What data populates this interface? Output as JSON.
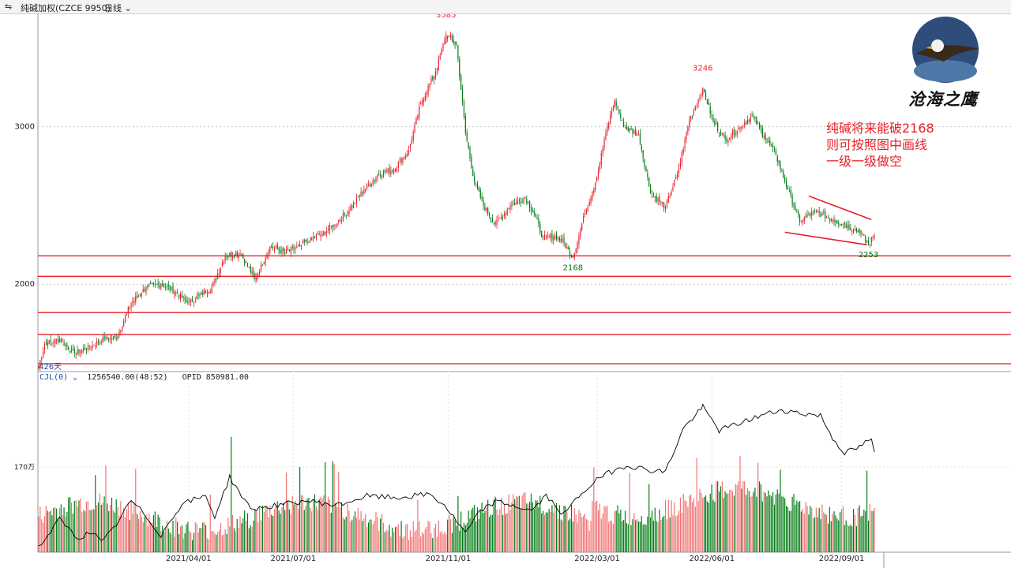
{
  "toolbar": {
    "icon": "chart-link-icon",
    "symbol": "纯碱加权(CZCE 9950)",
    "period": "日线"
  },
  "indicator": {
    "name": "CJL(0)",
    "volume_value": "1256540.00(48:52)",
    "oi_value": "OPID 850981.00"
  },
  "annotation": {
    "lines": [
      "纯碱将来能破2168",
      "则可按照图中画线",
      "一级一级做空"
    ]
  },
  "logo": {
    "text": "沧海之鹰",
    "icon": "eagle-logo-icon"
  },
  "chart_data": {
    "type": "candlestick",
    "price_axis": {
      "ticks": [
        3000,
        2000
      ],
      "ylim": [
        1450,
        3720
      ]
    },
    "volume_axis": {
      "ticks": [
        "170万"
      ]
    },
    "date_ticks": [
      "2021/04/01",
      "2021/07/01",
      "2021/11/01",
      "2022/03/01",
      "2022/06/01",
      "2022/09/01"
    ],
    "bar_count_label": "426天",
    "peak_labels": [
      {
        "label": "3585",
        "type": "high"
      },
      {
        "label": "3246",
        "type": "high"
      },
      {
        "label": "2168",
        "type": "low"
      },
      {
        "label": "2253",
        "type": "low"
      }
    ],
    "support_lines": [
      2180,
      2050,
      1820,
      1680,
      1495
    ],
    "colors": {
      "up": "#e8202a",
      "down": "#007a12",
      "line": "#e8202a",
      "oi": "#000000"
    },
    "anchors": [
      [
        0,
        1480
      ],
      [
        4,
        1620
      ],
      [
        14,
        1650
      ],
      [
        24,
        1560
      ],
      [
        33,
        1600
      ],
      [
        44,
        1650
      ],
      [
        52,
        1660
      ],
      [
        62,
        1880
      ],
      [
        72,
        1980
      ],
      [
        82,
        2000
      ],
      [
        92,
        1950
      ],
      [
        100,
        1880
      ],
      [
        108,
        1930
      ],
      [
        116,
        1980
      ],
      [
        125,
        2180
      ],
      [
        135,
        2200
      ],
      [
        145,
        2030
      ],
      [
        155,
        2240
      ],
      [
        165,
        2200
      ],
      [
        175,
        2240
      ],
      [
        182,
        2290
      ],
      [
        190,
        2320
      ],
      [
        198,
        2380
      ],
      [
        208,
        2470
      ],
      [
        218,
        2600
      ],
      [
        228,
        2700
      ],
      [
        238,
        2730
      ],
      [
        248,
        2850
      ],
      [
        256,
        3150
      ],
      [
        266,
        3350
      ],
      [
        273,
        3585
      ],
      [
        280,
        3520
      ],
      [
        286,
        2960
      ],
      [
        292,
        2650
      ],
      [
        298,
        2500
      ],
      [
        306,
        2380
      ],
      [
        316,
        2500
      ],
      [
        326,
        2550
      ],
      [
        332,
        2450
      ],
      [
        338,
        2290
      ],
      [
        346,
        2310
      ],
      [
        352,
        2260
      ],
      [
        358,
        2168
      ],
      [
        366,
        2450
      ],
      [
        374,
        2680
      ],
      [
        380,
        2960
      ],
      [
        386,
        3170
      ],
      [
        392,
        3000
      ],
      [
        402,
        2950
      ],
      [
        410,
        2580
      ],
      [
        420,
        2490
      ],
      [
        428,
        2700
      ],
      [
        436,
        3040
      ],
      [
        445,
        3246
      ],
      [
        452,
        3030
      ],
      [
        460,
        2920
      ],
      [
        470,
        3000
      ],
      [
        478,
        3070
      ],
      [
        486,
        2940
      ],
      [
        494,
        2820
      ],
      [
        502,
        2600
      ],
      [
        510,
        2400
      ],
      [
        520,
        2460
      ],
      [
        530,
        2420
      ],
      [
        540,
        2380
      ],
      [
        550,
        2330
      ],
      [
        556,
        2253
      ],
      [
        560,
        2310
      ]
    ],
    "oi_anchors": [
      [
        0,
        0.05
      ],
      [
        14,
        0.35
      ],
      [
        26,
        0.15
      ],
      [
        36,
        0.22
      ],
      [
        42,
        0.1
      ],
      [
        50,
        0.25
      ],
      [
        62,
        0.55
      ],
      [
        70,
        0.42
      ],
      [
        82,
        0.18
      ],
      [
        96,
        0.52
      ],
      [
        112,
        0.6
      ],
      [
        118,
        0.38
      ],
      [
        128,
        0.8
      ],
      [
        142,
        0.46
      ],
      [
        160,
        0.5
      ],
      [
        180,
        0.55
      ],
      [
        200,
        0.5
      ],
      [
        220,
        0.6
      ],
      [
        240,
        0.58
      ],
      [
        262,
        0.62
      ],
      [
        272,
        0.5
      ],
      [
        286,
        0.2
      ],
      [
        296,
        0.44
      ],
      [
        306,
        0.54
      ],
      [
        318,
        0.5
      ],
      [
        330,
        0.44
      ],
      [
        340,
        0.6
      ],
      [
        352,
        0.4
      ],
      [
        362,
        0.6
      ],
      [
        372,
        0.75
      ],
      [
        382,
        0.85
      ],
      [
        394,
        0.93
      ],
      [
        408,
        0.88
      ],
      [
        420,
        0.86
      ],
      [
        432,
        1.32
      ],
      [
        445,
        1.55
      ],
      [
        456,
        1.3
      ],
      [
        470,
        1.38
      ],
      [
        484,
        1.46
      ],
      [
        498,
        1.52
      ],
      [
        512,
        1.48
      ],
      [
        524,
        1.46
      ],
      [
        532,
        1.22
      ],
      [
        540,
        1.06
      ],
      [
        550,
        1.12
      ],
      [
        556,
        1.2
      ],
      [
        560,
        1.18
      ]
    ]
  }
}
